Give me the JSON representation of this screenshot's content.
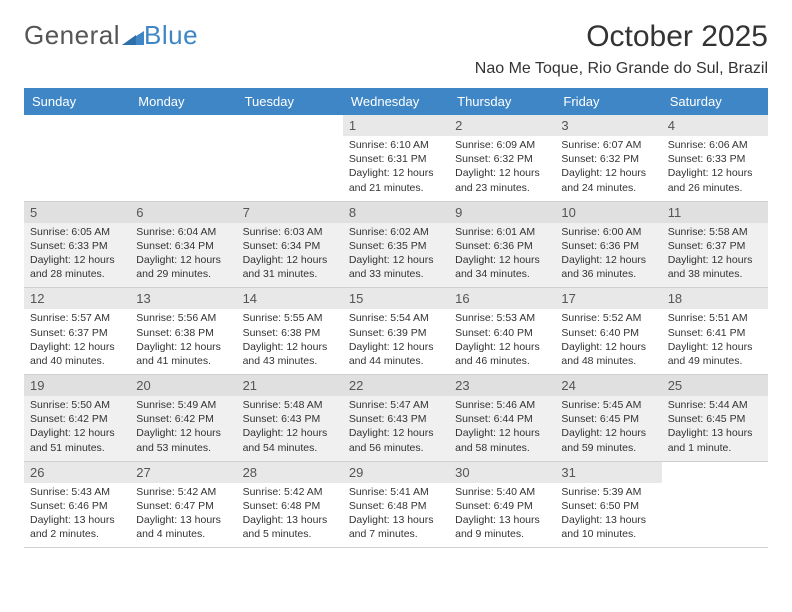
{
  "brand": {
    "part1": "General",
    "part2": "Blue"
  },
  "title": "October 2025",
  "location": "Nao Me Toque, Rio Grande do Sul, Brazil",
  "colors": {
    "accent": "#3f86c7",
    "text": "#333333",
    "grid": "#d0d0d0",
    "alt_row_bg": "#f0f0f0",
    "daynum_bg": "#e8e8e8"
  },
  "day_headers": [
    "Sunday",
    "Monday",
    "Tuesday",
    "Wednesday",
    "Thursday",
    "Friday",
    "Saturday"
  ],
  "weeks": [
    [
      null,
      null,
      null,
      {
        "n": "1",
        "sunrise": "Sunrise: 6:10 AM",
        "sunset": "Sunset: 6:31 PM",
        "daylight": "Daylight: 12 hours and 21 minutes."
      },
      {
        "n": "2",
        "sunrise": "Sunrise: 6:09 AM",
        "sunset": "Sunset: 6:32 PM",
        "daylight": "Daylight: 12 hours and 23 minutes."
      },
      {
        "n": "3",
        "sunrise": "Sunrise: 6:07 AM",
        "sunset": "Sunset: 6:32 PM",
        "daylight": "Daylight: 12 hours and 24 minutes."
      },
      {
        "n": "4",
        "sunrise": "Sunrise: 6:06 AM",
        "sunset": "Sunset: 6:33 PM",
        "daylight": "Daylight: 12 hours and 26 minutes."
      }
    ],
    [
      {
        "n": "5",
        "sunrise": "Sunrise: 6:05 AM",
        "sunset": "Sunset: 6:33 PM",
        "daylight": "Daylight: 12 hours and 28 minutes."
      },
      {
        "n": "6",
        "sunrise": "Sunrise: 6:04 AM",
        "sunset": "Sunset: 6:34 PM",
        "daylight": "Daylight: 12 hours and 29 minutes."
      },
      {
        "n": "7",
        "sunrise": "Sunrise: 6:03 AM",
        "sunset": "Sunset: 6:34 PM",
        "daylight": "Daylight: 12 hours and 31 minutes."
      },
      {
        "n": "8",
        "sunrise": "Sunrise: 6:02 AM",
        "sunset": "Sunset: 6:35 PM",
        "daylight": "Daylight: 12 hours and 33 minutes."
      },
      {
        "n": "9",
        "sunrise": "Sunrise: 6:01 AM",
        "sunset": "Sunset: 6:36 PM",
        "daylight": "Daylight: 12 hours and 34 minutes."
      },
      {
        "n": "10",
        "sunrise": "Sunrise: 6:00 AM",
        "sunset": "Sunset: 6:36 PM",
        "daylight": "Daylight: 12 hours and 36 minutes."
      },
      {
        "n": "11",
        "sunrise": "Sunrise: 5:58 AM",
        "sunset": "Sunset: 6:37 PM",
        "daylight": "Daylight: 12 hours and 38 minutes."
      }
    ],
    [
      {
        "n": "12",
        "sunrise": "Sunrise: 5:57 AM",
        "sunset": "Sunset: 6:37 PM",
        "daylight": "Daylight: 12 hours and 40 minutes."
      },
      {
        "n": "13",
        "sunrise": "Sunrise: 5:56 AM",
        "sunset": "Sunset: 6:38 PM",
        "daylight": "Daylight: 12 hours and 41 minutes."
      },
      {
        "n": "14",
        "sunrise": "Sunrise: 5:55 AM",
        "sunset": "Sunset: 6:38 PM",
        "daylight": "Daylight: 12 hours and 43 minutes."
      },
      {
        "n": "15",
        "sunrise": "Sunrise: 5:54 AM",
        "sunset": "Sunset: 6:39 PM",
        "daylight": "Daylight: 12 hours and 44 minutes."
      },
      {
        "n": "16",
        "sunrise": "Sunrise: 5:53 AM",
        "sunset": "Sunset: 6:40 PM",
        "daylight": "Daylight: 12 hours and 46 minutes."
      },
      {
        "n": "17",
        "sunrise": "Sunrise: 5:52 AM",
        "sunset": "Sunset: 6:40 PM",
        "daylight": "Daylight: 12 hours and 48 minutes."
      },
      {
        "n": "18",
        "sunrise": "Sunrise: 5:51 AM",
        "sunset": "Sunset: 6:41 PM",
        "daylight": "Daylight: 12 hours and 49 minutes."
      }
    ],
    [
      {
        "n": "19",
        "sunrise": "Sunrise: 5:50 AM",
        "sunset": "Sunset: 6:42 PM",
        "daylight": "Daylight: 12 hours and 51 minutes."
      },
      {
        "n": "20",
        "sunrise": "Sunrise: 5:49 AM",
        "sunset": "Sunset: 6:42 PM",
        "daylight": "Daylight: 12 hours and 53 minutes."
      },
      {
        "n": "21",
        "sunrise": "Sunrise: 5:48 AM",
        "sunset": "Sunset: 6:43 PM",
        "daylight": "Daylight: 12 hours and 54 minutes."
      },
      {
        "n": "22",
        "sunrise": "Sunrise: 5:47 AM",
        "sunset": "Sunset: 6:43 PM",
        "daylight": "Daylight: 12 hours and 56 minutes."
      },
      {
        "n": "23",
        "sunrise": "Sunrise: 5:46 AM",
        "sunset": "Sunset: 6:44 PM",
        "daylight": "Daylight: 12 hours and 58 minutes."
      },
      {
        "n": "24",
        "sunrise": "Sunrise: 5:45 AM",
        "sunset": "Sunset: 6:45 PM",
        "daylight": "Daylight: 12 hours and 59 minutes."
      },
      {
        "n": "25",
        "sunrise": "Sunrise: 5:44 AM",
        "sunset": "Sunset: 6:45 PM",
        "daylight": "Daylight: 13 hours and 1 minute."
      }
    ],
    [
      {
        "n": "26",
        "sunrise": "Sunrise: 5:43 AM",
        "sunset": "Sunset: 6:46 PM",
        "daylight": "Daylight: 13 hours and 2 minutes."
      },
      {
        "n": "27",
        "sunrise": "Sunrise: 5:42 AM",
        "sunset": "Sunset: 6:47 PM",
        "daylight": "Daylight: 13 hours and 4 minutes."
      },
      {
        "n": "28",
        "sunrise": "Sunrise: 5:42 AM",
        "sunset": "Sunset: 6:48 PM",
        "daylight": "Daylight: 13 hours and 5 minutes."
      },
      {
        "n": "29",
        "sunrise": "Sunrise: 5:41 AM",
        "sunset": "Sunset: 6:48 PM",
        "daylight": "Daylight: 13 hours and 7 minutes."
      },
      {
        "n": "30",
        "sunrise": "Sunrise: 5:40 AM",
        "sunset": "Sunset: 6:49 PM",
        "daylight": "Daylight: 13 hours and 9 minutes."
      },
      {
        "n": "31",
        "sunrise": "Sunrise: 5:39 AM",
        "sunset": "Sunset: 6:50 PM",
        "daylight": "Daylight: 13 hours and 10 minutes."
      },
      null
    ]
  ]
}
